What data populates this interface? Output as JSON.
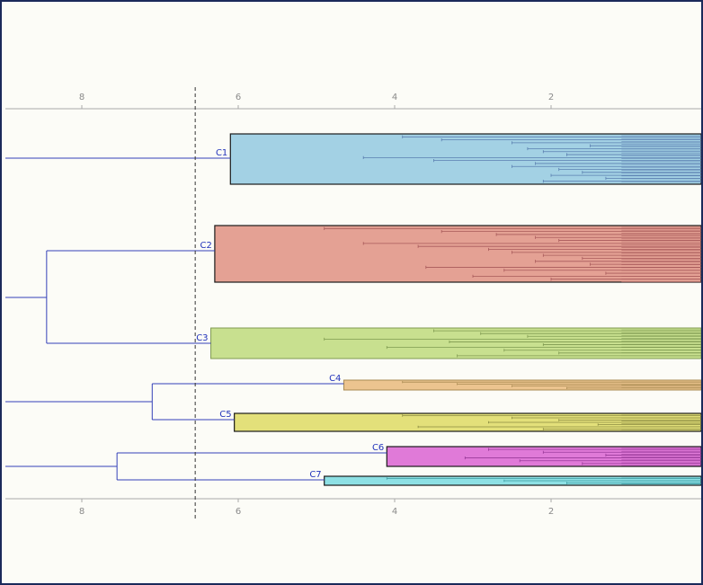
{
  "axis": {
    "ticks": [
      {
        "value": 8,
        "label": "8"
      },
      {
        "value": 6,
        "label": "6"
      },
      {
        "value": 4,
        "label": "4"
      },
      {
        "value": 2,
        "label": "2"
      }
    ],
    "cutoff": 6.55
  },
  "clusters": [
    {
      "label": "C1",
      "height": 6.1,
      "fill": "#a3d1e4",
      "line": "#5a7fb0",
      "strong": true,
      "subs": [
        3.9,
        3.4,
        2.5,
        1.5,
        2.3,
        2.1,
        1.8,
        4.4,
        3.5,
        2.2,
        2.5,
        1.9,
        1.6,
        2.0,
        1.3,
        2.1
      ]
    },
    {
      "label": "C2",
      "height": 6.3,
      "fill": "#e4a194",
      "line": "#a85a5a",
      "strong": true,
      "subs": [
        4.9,
        3.4,
        2.7,
        2.2,
        1.9,
        4.4,
        3.7,
        2.8,
        2.5,
        2.1,
        1.6,
        2.2,
        1.5,
        3.6,
        2.6,
        1.3,
        3.0,
        2.0
      ]
    },
    {
      "label": "C3",
      "height": 6.35,
      "fill": "#c8e08f",
      "line": "#7f9a50",
      "strong": false,
      "subs": [
        3.5,
        2.9,
        2.3,
        4.9,
        3.3,
        2.1,
        4.1,
        2.6,
        1.9,
        3.2
      ]
    },
    {
      "label": "C4",
      "height": 4.65,
      "fill": "#ecc48f",
      "line": "#a88a50",
      "strong": false,
      "subs": [
        3.9,
        3.2,
        2.5,
        1.8
      ]
    },
    {
      "label": "C5",
      "height": 6.05,
      "fill": "#e3e07a",
      "line": "#8a8a40",
      "strong": true,
      "subs": [
        3.9,
        2.5,
        1.9,
        2.8,
        1.4,
        3.7,
        2.1
      ]
    },
    {
      "label": "C6",
      "height": 4.1,
      "fill": "#e07ad8",
      "line": "#9a3a9a",
      "strong": true,
      "subs": [
        2.8,
        2.1,
        1.3,
        3.1,
        2.4,
        1.6
      ]
    },
    {
      "label": "C7",
      "height": 4.9,
      "fill": "#8de0e4",
      "line": "#3a9aa0",
      "strong": true,
      "subs": [
        4.1,
        2.6,
        1.8
      ]
    }
  ],
  "merges": [
    {
      "height": 8.45,
      "children": [
        "C2",
        "C3"
      ]
    },
    {
      "height": 7.1,
      "children": [
        "C4",
        "C5"
      ]
    },
    {
      "height": 7.55,
      "children": [
        "C6",
        "C7"
      ]
    }
  ],
  "colors": {
    "connector": "#3340b8",
    "axis": "#aaaaaa",
    "background": "#fcfcf7",
    "border": "#1b2a5a"
  }
}
